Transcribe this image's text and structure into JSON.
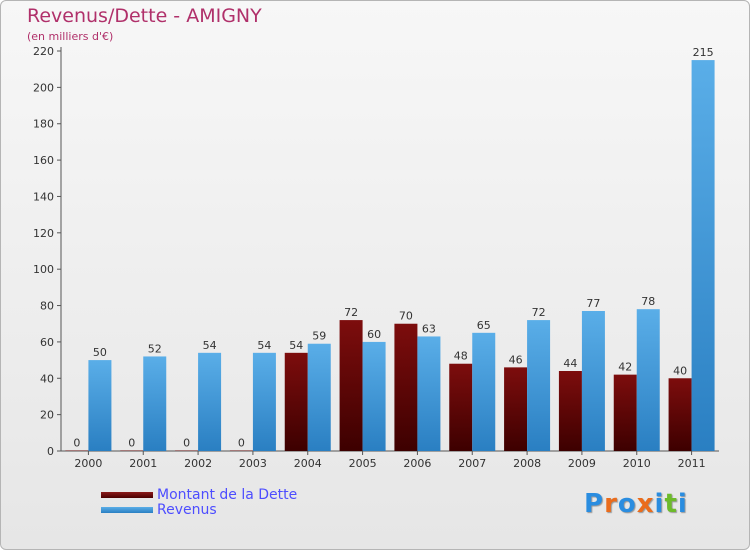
{
  "chart_data": {
    "type": "bar",
    "title": "Revenus/Dette - AMIGNY",
    "subtitle": "(en milliers d'€)",
    "categories": [
      "2000",
      "2001",
      "2002",
      "2003",
      "2004",
      "2005",
      "2006",
      "2007",
      "2008",
      "2009",
      "2010",
      "2011"
    ],
    "series": [
      {
        "name": "Montant de la Dette",
        "color": "#7a0b0b",
        "values": [
          0,
          0,
          0,
          0,
          54,
          72,
          70,
          48,
          46,
          44,
          42,
          40
        ]
      },
      {
        "name": "Revenus",
        "color": "#4aa0e0",
        "values": [
          50,
          52,
          54,
          54,
          59,
          60,
          63,
          65,
          72,
          77,
          78,
          215
        ]
      }
    ],
    "ylim": [
      0,
      220
    ],
    "yticks": [
      0,
      20,
      40,
      60,
      80,
      100,
      120,
      140,
      160,
      180,
      200,
      220
    ],
    "grid": false,
    "legend_position": "bottom-left"
  },
  "logo": {
    "text": "Proxiti",
    "letters": [
      "P",
      "r",
      "o",
      "x",
      "i",
      "t",
      "i"
    ],
    "colors": [
      "#2a8de0",
      "#ea6c1c",
      "#2a8de0",
      "#ea6c1c",
      "#2a8de0",
      "#6dbb2a",
      "#2a8de0"
    ]
  }
}
